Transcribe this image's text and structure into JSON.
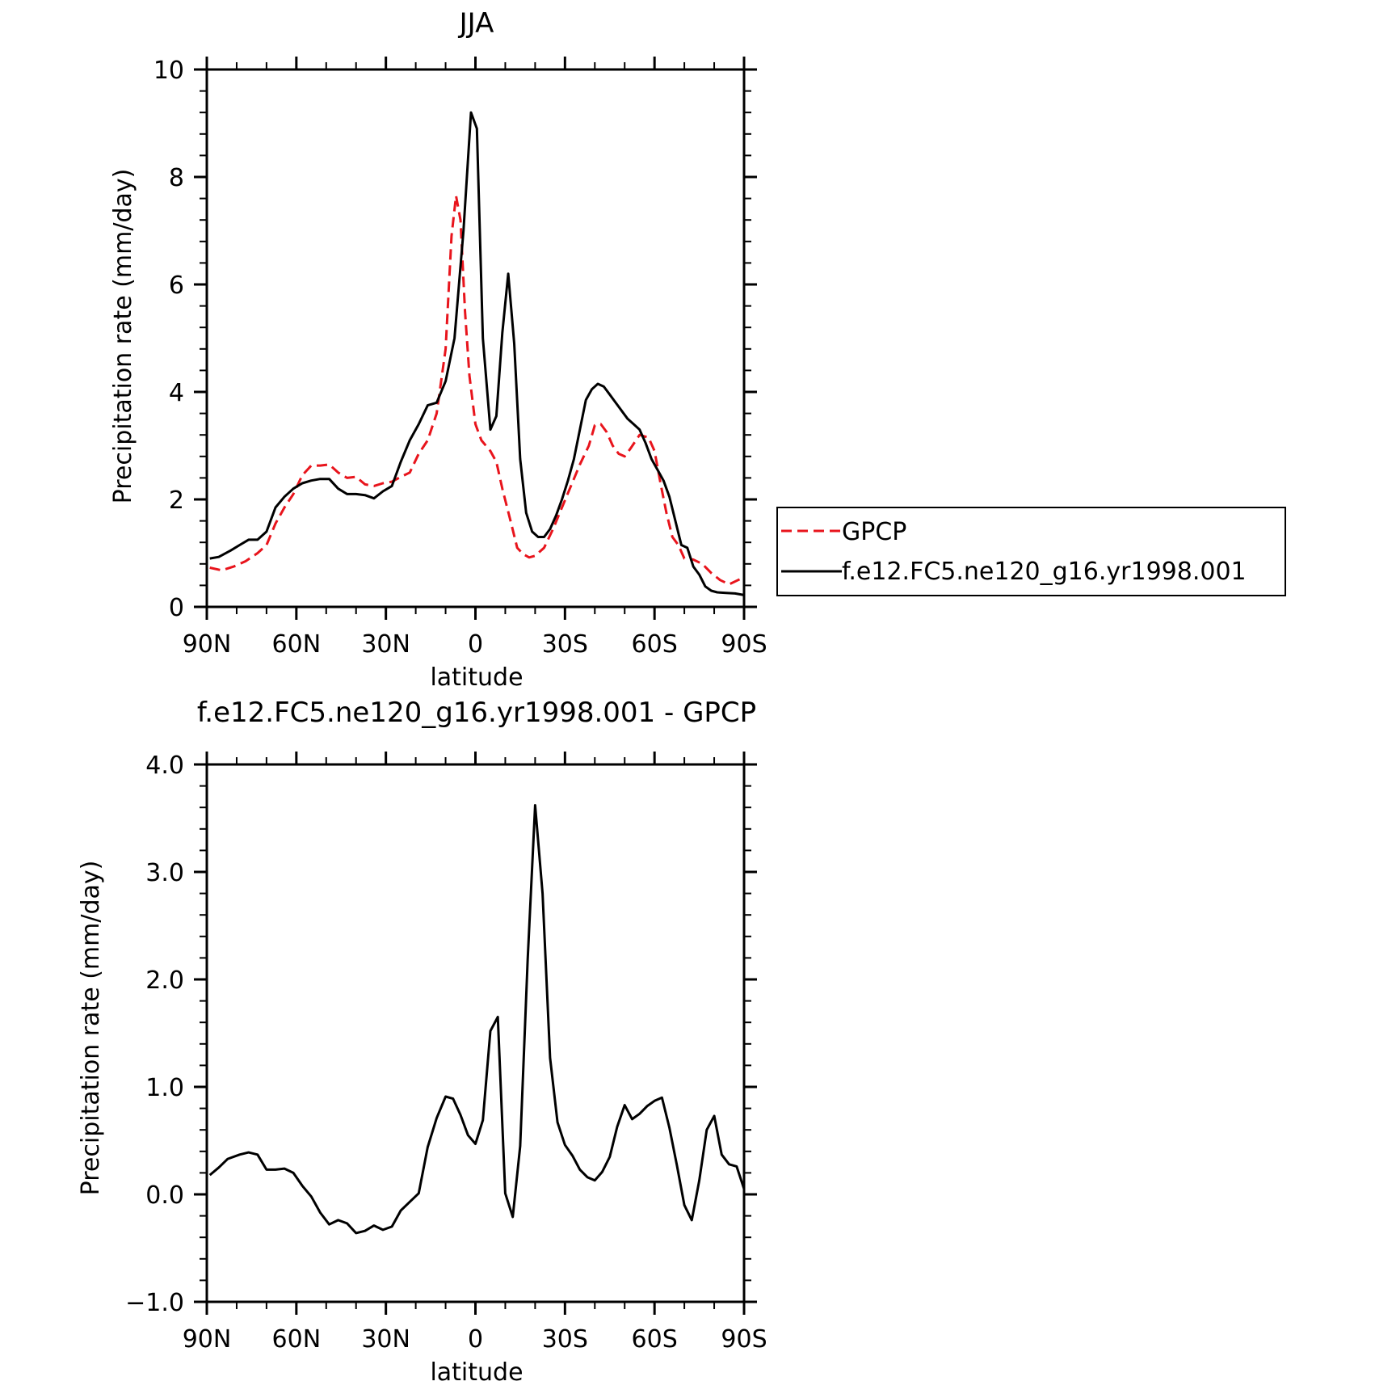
{
  "chart_data": [
    {
      "type": "line",
      "title": "JJA",
      "xlabel": "latitude",
      "ylabel": "Precipitation rate (mm/day)",
      "xlim": [
        -90,
        90
      ],
      "ylim": [
        0,
        10
      ],
      "x_ticks": [
        {
          "value": -90,
          "label": "90N"
        },
        {
          "value": -60,
          "label": "60N"
        },
        {
          "value": -30,
          "label": "30N"
        },
        {
          "value": 0,
          "label": "0"
        },
        {
          "value": 30,
          "label": "30S"
        },
        {
          "value": 60,
          "label": "60S"
        },
        {
          "value": 90,
          "label": "90S"
        }
      ],
      "y_ticks": [
        {
          "value": 0,
          "label": "0"
        },
        {
          "value": 2,
          "label": "2"
        },
        {
          "value": 4,
          "label": "4"
        },
        {
          "value": 6,
          "label": "6"
        },
        {
          "value": 8,
          "label": "8"
        },
        {
          "value": 10,
          "label": "10"
        }
      ],
      "legend": {
        "placement": "right",
        "entries": [
          "GPCP",
          "f.e12.FC5.ne120_g16.yr1998.001"
        ]
      },
      "series": [
        {
          "name": "GPCP",
          "color": "#e8141c",
          "dash": "dashed",
          "points": [
            [
              -89,
              0.73
            ],
            [
              -85,
              0.68
            ],
            [
              -81,
              0.75
            ],
            [
              -77,
              0.85
            ],
            [
              -73,
              1.0
            ],
            [
              -70,
              1.15
            ],
            [
              -67,
              1.55
            ],
            [
              -64,
              1.85
            ],
            [
              -61,
              2.1
            ],
            [
              -58,
              2.45
            ],
            [
              -55,
              2.63
            ],
            [
              -52,
              2.63
            ],
            [
              -49,
              2.65
            ],
            [
              -46,
              2.5
            ],
            [
              -43,
              2.4
            ],
            [
              -40,
              2.42
            ],
            [
              -37,
              2.28
            ],
            [
              -34,
              2.25
            ],
            [
              -31,
              2.3
            ],
            [
              -28,
              2.33
            ],
            [
              -25,
              2.42
            ],
            [
              -22,
              2.5
            ],
            [
              -19,
              2.85
            ],
            [
              -16,
              3.1
            ],
            [
              -13,
              3.6
            ],
            [
              -10,
              4.8
            ],
            [
              -8,
              6.9
            ],
            [
              -6.5,
              7.65
            ],
            [
              -5,
              7.2
            ],
            [
              -3.5,
              5.5
            ],
            [
              -2,
              4.3
            ],
            [
              0,
              3.4
            ],
            [
              2,
              3.1
            ],
            [
              5,
              2.9
            ],
            [
              7,
              2.7
            ],
            [
              9,
              2.2
            ],
            [
              12,
              1.55
            ],
            [
              14,
              1.1
            ],
            [
              16,
              0.98
            ],
            [
              18,
              0.92
            ],
            [
              20,
              0.95
            ],
            [
              23,
              1.1
            ],
            [
              26,
              1.45
            ],
            [
              29,
              1.85
            ],
            [
              32,
              2.25
            ],
            [
              35,
              2.65
            ],
            [
              38,
              3.0
            ],
            [
              40,
              3.38
            ],
            [
              42,
              3.4
            ],
            [
              44,
              3.25
            ],
            [
              46,
              3.0
            ],
            [
              48,
              2.85
            ],
            [
              50,
              2.8
            ],
            [
              52,
              2.95
            ],
            [
              55,
              3.2
            ],
            [
              58,
              3.15
            ],
            [
              60,
              2.9
            ],
            [
              62,
              2.3
            ],
            [
              64,
              1.75
            ],
            [
              66,
              1.3
            ],
            [
              68,
              1.15
            ],
            [
              70,
              0.9
            ],
            [
              73,
              0.88
            ],
            [
              76,
              0.8
            ],
            [
              79,
              0.63
            ],
            [
              82,
              0.5
            ],
            [
              85,
              0.42
            ],
            [
              88,
              0.5
            ],
            [
              90,
              0.55
            ]
          ]
        },
        {
          "name": "f.e12.FC5.ne120_g16.yr1998.001",
          "color": "#000000",
          "dash": "solid",
          "points": [
            [
              -89,
              0.9
            ],
            [
              -86,
              0.93
            ],
            [
              -82,
              1.05
            ],
            [
              -79,
              1.15
            ],
            [
              -76,
              1.25
            ],
            [
              -73,
              1.25
            ],
            [
              -70,
              1.4
            ],
            [
              -67,
              1.85
            ],
            [
              -64,
              2.05
            ],
            [
              -61,
              2.2
            ],
            [
              -58,
              2.3
            ],
            [
              -55,
              2.35
            ],
            [
              -52,
              2.38
            ],
            [
              -49,
              2.38
            ],
            [
              -46,
              2.2
            ],
            [
              -43,
              2.1
            ],
            [
              -40,
              2.1
            ],
            [
              -37,
              2.08
            ],
            [
              -34,
              2.02
            ],
            [
              -31,
              2.15
            ],
            [
              -28,
              2.25
            ],
            [
              -25,
              2.7
            ],
            [
              -22,
              3.1
            ],
            [
              -19,
              3.4
            ],
            [
              -16,
              3.75
            ],
            [
              -13,
              3.8
            ],
            [
              -10,
              4.2
            ],
            [
              -7,
              5.0
            ],
            [
              -4,
              7.0
            ],
            [
              -1.5,
              9.2
            ],
            [
              0.5,
              8.9
            ],
            [
              2.5,
              5.0
            ],
            [
              5,
              3.3
            ],
            [
              7,
              3.55
            ],
            [
              9,
              5.1
            ],
            [
              11,
              6.2
            ],
            [
              13,
              4.9
            ],
            [
              15,
              2.75
            ],
            [
              17,
              1.75
            ],
            [
              19,
              1.4
            ],
            [
              21,
              1.3
            ],
            [
              23,
              1.3
            ],
            [
              25,
              1.45
            ],
            [
              27,
              1.7
            ],
            [
              29,
              2.0
            ],
            [
              31,
              2.35
            ],
            [
              33,
              2.75
            ],
            [
              35,
              3.3
            ],
            [
              37,
              3.85
            ],
            [
              39,
              4.05
            ],
            [
              41,
              4.15
            ],
            [
              43,
              4.1
            ],
            [
              45,
              3.95
            ],
            [
              47,
              3.8
            ],
            [
              49,
              3.65
            ],
            [
              51,
              3.5
            ],
            [
              53,
              3.4
            ],
            [
              55,
              3.3
            ],
            [
              57,
              3.05
            ],
            [
              59,
              2.75
            ],
            [
              61,
              2.55
            ],
            [
              63,
              2.35
            ],
            [
              65,
              2.05
            ],
            [
              67,
              1.6
            ],
            [
              69,
              1.15
            ],
            [
              71,
              1.1
            ],
            [
              73,
              0.75
            ],
            [
              75,
              0.6
            ],
            [
              77,
              0.38
            ],
            [
              79,
              0.3
            ],
            [
              81,
              0.27
            ],
            [
              84,
              0.26
            ],
            [
              87,
              0.25
            ],
            [
              90,
              0.22
            ]
          ]
        }
      ]
    },
    {
      "type": "line",
      "title": "f.e12.FC5.ne120_g16.yr1998.001 - GPCP",
      "xlabel": "latitude",
      "ylabel": "Precipitation rate (mm/day)",
      "xlim": [
        -90,
        90
      ],
      "ylim": [
        -1.0,
        4.0
      ],
      "x_ticks": [
        {
          "value": -90,
          "label": "90N"
        },
        {
          "value": -60,
          "label": "60N"
        },
        {
          "value": -30,
          "label": "30N"
        },
        {
          "value": 0,
          "label": "0"
        },
        {
          "value": 30,
          "label": "30S"
        },
        {
          "value": 60,
          "label": "60S"
        },
        {
          "value": 90,
          "label": "90S"
        }
      ],
      "y_ticks": [
        {
          "value": -1.0,
          "label": "−1.0"
        },
        {
          "value": 0.0,
          "label": "0.0"
        },
        {
          "value": 1.0,
          "label": "1.0"
        },
        {
          "value": 2.0,
          "label": "2.0"
        },
        {
          "value": 3.0,
          "label": "3.0"
        },
        {
          "value": 4.0,
          "label": "4.0"
        }
      ],
      "series": [
        {
          "color": "#000000",
          "dash": "solid",
          "points": [
            [
              -89,
              0.18
            ],
            [
              -86,
              0.25
            ],
            [
              -83,
              0.33
            ],
            [
              -79,
              0.37
            ],
            [
              -76,
              0.39
            ],
            [
              -73,
              0.37
            ],
            [
              -70,
              0.23
            ],
            [
              -67,
              0.23
            ],
            [
              -64,
              0.24
            ],
            [
              -61,
              0.2
            ],
            [
              -58,
              0.08
            ],
            [
              -55,
              -0.02
            ],
            [
              -52,
              -0.17
            ],
            [
              -49,
              -0.28
            ],
            [
              -46,
              -0.24
            ],
            [
              -43,
              -0.27
            ],
            [
              -40,
              -0.36
            ],
            [
              -37,
              -0.34
            ],
            [
              -34,
              -0.29
            ],
            [
              -31,
              -0.33
            ],
            [
              -28,
              -0.3
            ],
            [
              -25,
              -0.15
            ],
            [
              -22,
              -0.07
            ],
            [
              -19,
              0.01
            ],
            [
              -16,
              0.44
            ],
            [
              -13,
              0.71
            ],
            [
              -10,
              0.91
            ],
            [
              -7.5,
              0.89
            ],
            [
              -5,
              0.74
            ],
            [
              -2.5,
              0.55
            ],
            [
              0,
              0.47
            ],
            [
              2.5,
              0.69
            ],
            [
              5,
              1.52
            ],
            [
              7.5,
              1.65
            ],
            [
              10,
              0.01
            ],
            [
              12.5,
              -0.21
            ],
            [
              15,
              0.45
            ],
            [
              17.5,
              2.19
            ],
            [
              20,
              3.62
            ],
            [
              22.5,
              2.8
            ],
            [
              25,
              1.27
            ],
            [
              27.5,
              0.67
            ],
            [
              30,
              0.46
            ],
            [
              32.5,
              0.36
            ],
            [
              35,
              0.23
            ],
            [
              37.5,
              0.16
            ],
            [
              40,
              0.13
            ],
            [
              42.5,
              0.21
            ],
            [
              45,
              0.35
            ],
            [
              47.5,
              0.63
            ],
            [
              50,
              0.83
            ],
            [
              52.5,
              0.7
            ],
            [
              55,
              0.75
            ],
            [
              57.5,
              0.82
            ],
            [
              60,
              0.87
            ],
            [
              62.5,
              0.9
            ],
            [
              65,
              0.62
            ],
            [
              67.5,
              0.27
            ],
            [
              70,
              -0.1
            ],
            [
              72.5,
              -0.24
            ],
            [
              75,
              0.13
            ],
            [
              77.5,
              0.6
            ],
            [
              80,
              0.73
            ],
            [
              82.5,
              0.37
            ],
            [
              85,
              0.28
            ],
            [
              87.5,
              0.26
            ],
            [
              90,
              0.05
            ]
          ]
        }
      ]
    }
  ]
}
